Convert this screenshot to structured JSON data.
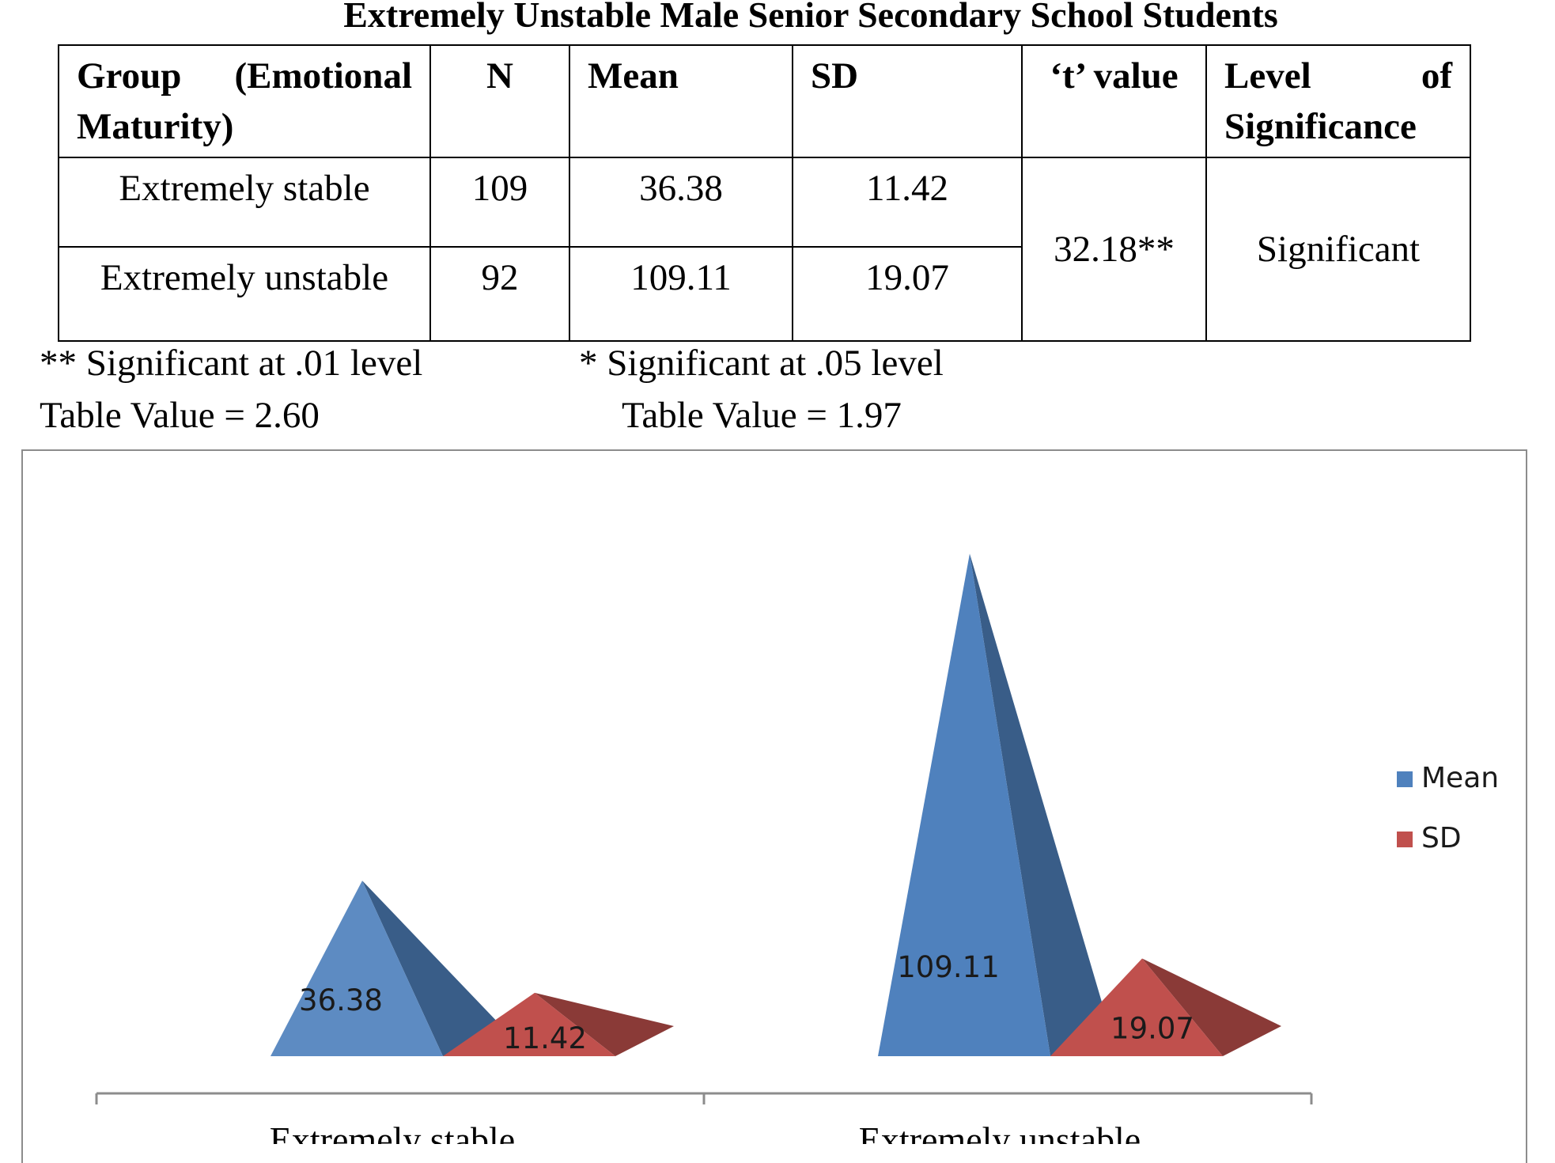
{
  "title": "Extremely Unstable Male Senior Secondary School Students",
  "table": {
    "headers": {
      "group": "Group (Emotional Maturity)",
      "n": "N",
      "mean": "Mean",
      "sd": "SD",
      "t": "‘t’ value",
      "level": "Level of Significance"
    },
    "rows": [
      {
        "group": "Extremely stable",
        "n": "109",
        "mean": "36.38",
        "sd": "11.42"
      },
      {
        "group": "Extremely unstable",
        "n": "92",
        "mean": "109.11",
        "sd": "19.07"
      }
    ],
    "t_value": "32.18**",
    "significance": "Significant"
  },
  "notes": {
    "sig01": "** Significant at .01 level",
    "sig05": "* Significant at .05 level",
    "table01": "Table Value = 2.60",
    "table05": "Table Value = 1.97"
  },
  "chart_data": {
    "type": "bar",
    "style": "3d-pyramid",
    "categories": [
      "Extremely stable",
      "Extremely unstable"
    ],
    "series": [
      {
        "name": "Mean",
        "values": [
          36.38,
          109.11
        ],
        "color": "#4f81bd"
      },
      {
        "name": "SD",
        "values": [
          11.42,
          19.07
        ],
        "color": "#c0504d"
      }
    ],
    "data_labels": true,
    "legend": "right",
    "grid": false
  }
}
